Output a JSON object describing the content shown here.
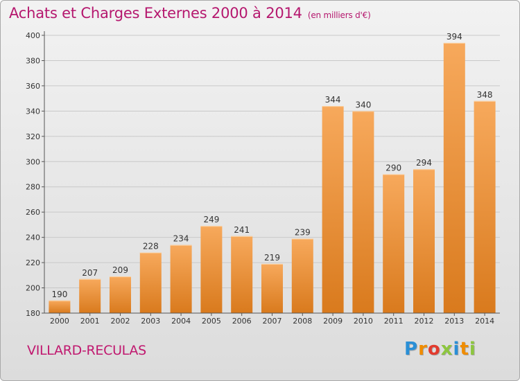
{
  "header": {
    "title": "Achats et Charges Externes 2000 à 2014",
    "subtitle": "(en milliers d'€)"
  },
  "footer": {
    "commune": "VILLARD-RECULAS",
    "logo_letters": [
      "P",
      "r",
      "o",
      "x",
      "i",
      "t",
      "i"
    ],
    "logo_colors": [
      "#2a8fd6",
      "#f08c00",
      "#e23b2e",
      "#8dc63f",
      "#2a8fd6",
      "#f08c00",
      "#8dc63f"
    ]
  },
  "colors": {
    "bar_light": "#f7a95c",
    "bar_dark": "#d97a1d",
    "title": "#b5176e",
    "grid": "#c8c8c8"
  },
  "chart_data": {
    "type": "bar",
    "title": "Achats et Charges Externes 2000 à 2014",
    "subtitle": "(en milliers d'€)",
    "xlabel": "",
    "ylabel": "",
    "categories": [
      "2000",
      "2001",
      "2002",
      "2003",
      "2004",
      "2005",
      "2006",
      "2007",
      "2008",
      "2009",
      "2010",
      "2011",
      "2012",
      "2013",
      "2014"
    ],
    "values": [
      190,
      207,
      209,
      228,
      234,
      249,
      241,
      219,
      239,
      344,
      340,
      290,
      294,
      394,
      348
    ],
    "ylim": [
      180,
      400
    ],
    "yticks": [
      180,
      200,
      220,
      240,
      260,
      280,
      300,
      320,
      340,
      360,
      380,
      400
    ],
    "grid": true,
    "data_labels": true
  }
}
